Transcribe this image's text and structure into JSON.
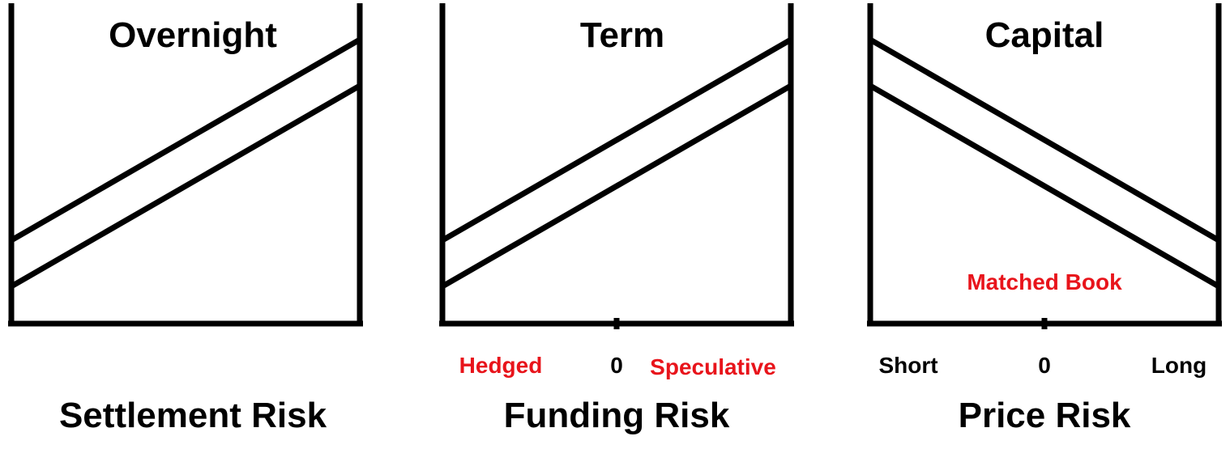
{
  "colors": {
    "line": "#000000",
    "accent": "#e8141b"
  },
  "panels": [
    {
      "title": "Overnight",
      "caption": "Settlement Risk",
      "direction": "rising",
      "has_center_tick": false,
      "labels": {
        "left": "",
        "center": "",
        "right": "",
        "annotation": ""
      }
    },
    {
      "title": "Term",
      "caption": "Funding Risk",
      "direction": "rising",
      "has_center_tick": true,
      "labels": {
        "left": "Hedged",
        "center": "0",
        "right": "Speculative",
        "annotation": ""
      }
    },
    {
      "title": "Capital",
      "caption": "Price Risk",
      "direction": "falling",
      "has_center_tick": true,
      "labels": {
        "left": "Short",
        "center": "0",
        "right": "Long",
        "annotation": "Matched Book"
      }
    }
  ]
}
